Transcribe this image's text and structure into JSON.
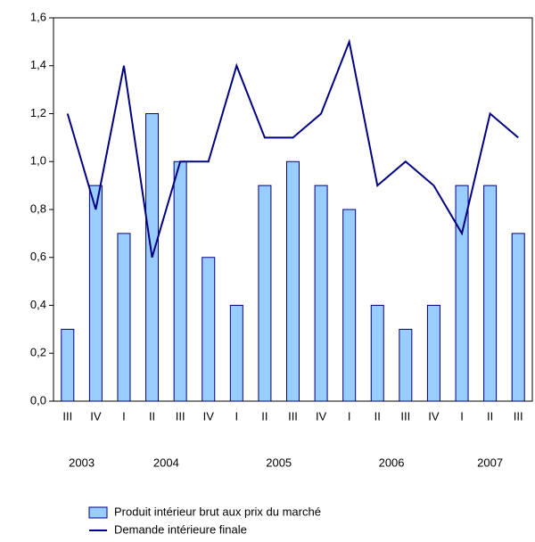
{
  "chart_data": {
    "type": "bar_line",
    "categories": [
      "III",
      "IV",
      "I",
      "II",
      "III",
      "IV",
      "I",
      "II",
      "III",
      "IV",
      "I",
      "II",
      "III",
      "IV",
      "I",
      "II",
      "III"
    ],
    "years": [
      "2003",
      "2003",
      "2004",
      "2004",
      "2004",
      "2004",
      "2005",
      "2005",
      "2005",
      "2005",
      "2006",
      "2006",
      "2006",
      "2006",
      "2007",
      "2007",
      "2007"
    ],
    "series": [
      {
        "name": "Produit intérieur brut aux prix du marché",
        "type": "bar",
        "color": "#99ccff",
        "values": [
          0.3,
          0.9,
          0.7,
          1.2,
          1.0,
          0.6,
          0.4,
          0.9,
          1.0,
          0.9,
          0.8,
          0.4,
          0.3,
          0.4,
          0.9,
          0.9,
          0.7
        ]
      },
      {
        "name": "Demande intérieure finale",
        "type": "line",
        "color": "#000080",
        "values": [
          1.2,
          0.8,
          1.4,
          0.6,
          1.0,
          1.0,
          1.4,
          1.1,
          1.1,
          1.2,
          1.5,
          0.9,
          1.0,
          0.9,
          0.7,
          1.2,
          1.1
        ]
      }
    ],
    "ylim": [
      0,
      1.6
    ],
    "yticks": [
      {
        "value": 0,
        "label": "0,0"
      },
      {
        "value": 0.2,
        "label": "0,2"
      },
      {
        "value": 0.4,
        "label": "0,4"
      },
      {
        "value": 0.6,
        "label": "0,6"
      },
      {
        "value": 0.8,
        "label": "0,8"
      },
      {
        "value": 1.0,
        "label": "1,0"
      },
      {
        "value": 1.2,
        "label": "1,2"
      },
      {
        "value": 1.4,
        "label": "1,4"
      },
      {
        "value": 1.6,
        "label": "1,6"
      }
    ],
    "legend": "bottom"
  }
}
